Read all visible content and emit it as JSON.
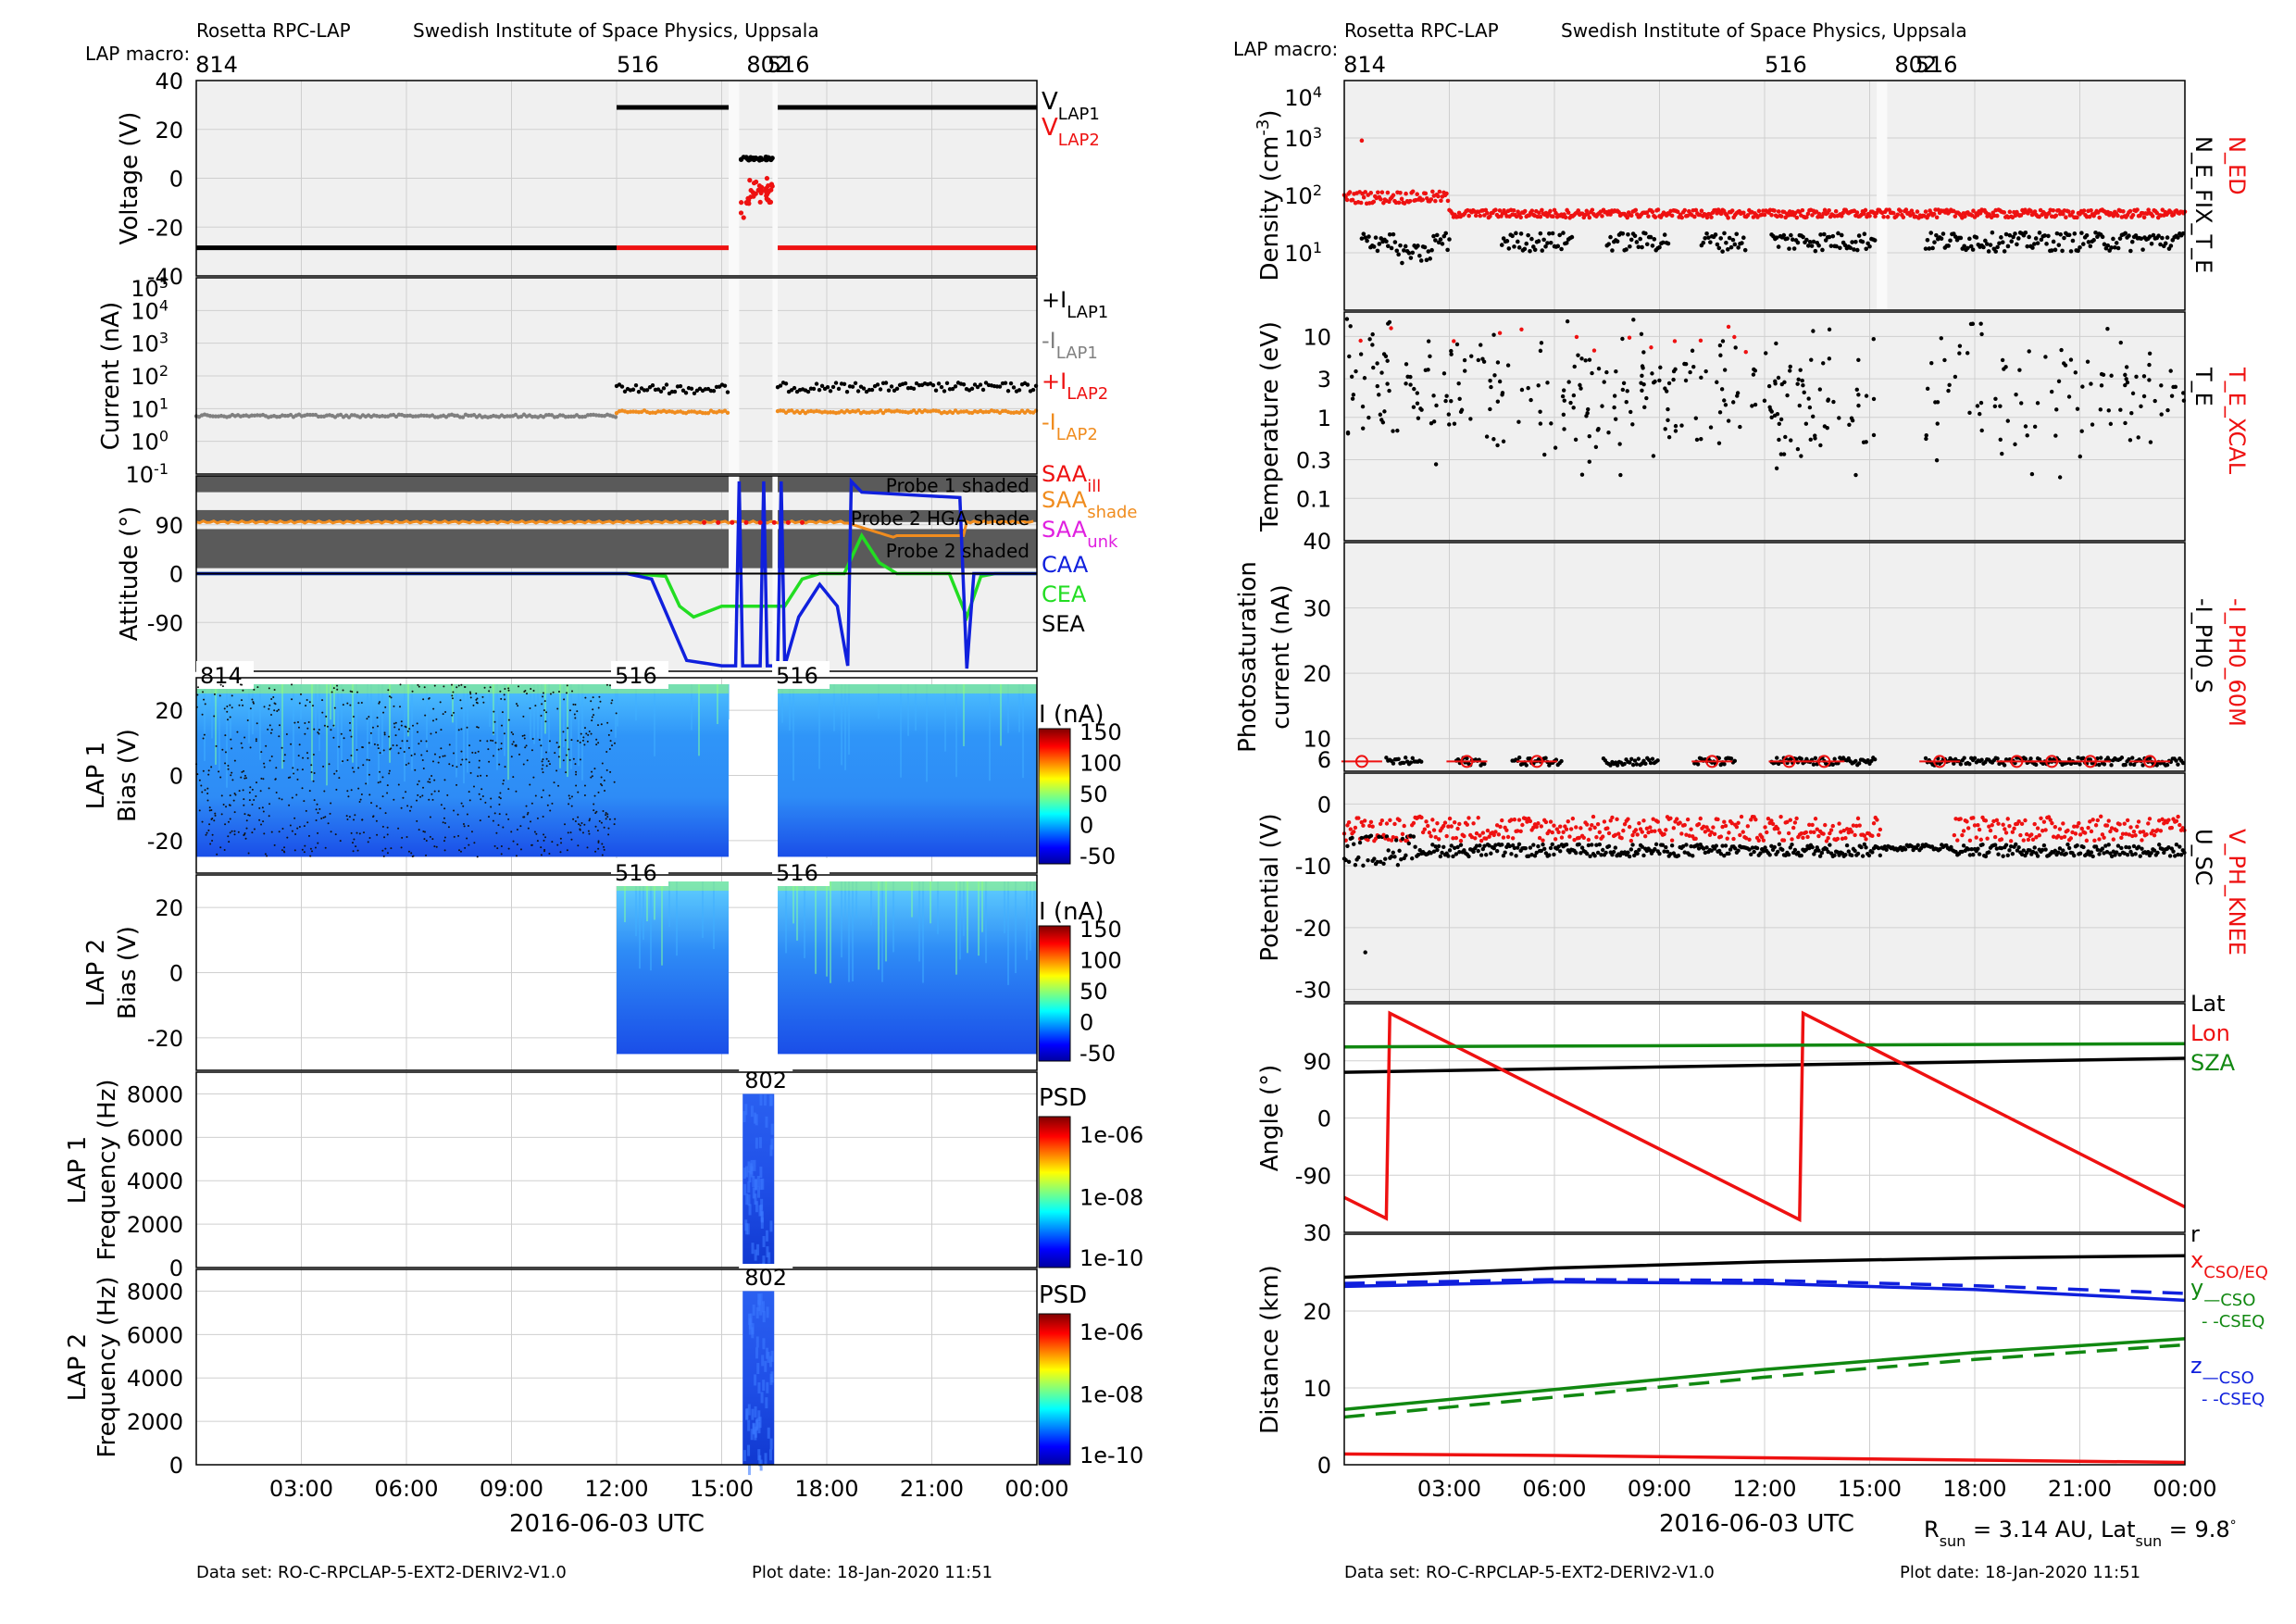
{
  "header": {
    "title_left": "Rosetta RPC-LAP",
    "institute": "Swedish Institute of Space Physics, Uppsala",
    "macro_label": "LAP macro:",
    "macros": [
      {
        "label": "814",
        "hour": 0
      },
      {
        "label": "516",
        "hour": 12
      },
      {
        "label": "802",
        "hour": 15.5
      },
      {
        "label": "516",
        "hour": 16.3
      }
    ]
  },
  "footer": {
    "dataset": "Data set: RO-C-RPCLAP-5-EXT2-DERIV2-V1.0",
    "plot_date": "Plot date: 18-Jan-2020 11:51",
    "xlabel": "2016-06-03 UTC",
    "sun_info": "R_sun = 3.14 AU, Lat_sun = 9.8°"
  },
  "colors": {
    "black": "#000000",
    "red": "#ee1111",
    "grey": "#808080",
    "orange": "#f08c1e",
    "blue": "#1020dd",
    "green": "#22dd22",
    "dkgreen": "#118811",
    "magenta": "#e020e0",
    "panel_bg": "#f0f0f0",
    "shade": "#5a5a5a"
  },
  "chart_data": [
    {
      "id": "voltage",
      "type": "line",
      "ylabel": "Voltage (V)",
      "ylim": [
        -40,
        40
      ],
      "yticks": [
        40,
        20,
        0,
        -20,
        -40
      ],
      "legend": [
        "V_LAP1",
        "V_LAP2"
      ],
      "series": [
        {
          "name": "V_LAP1",
          "color": "black",
          "points": [
            [
              0,
              -28.5
            ],
            [
              12,
              -28.5
            ],
            [
              12,
              29
            ],
            [
              15.2,
              29
            ],
            [
              16.6,
              29
            ],
            [
              24,
              29
            ]
          ],
          "segments": [
            [
              0,
              12,
              -28.5
            ],
            [
              12,
              15.2,
              29
            ],
            [
              16.6,
              24,
              29
            ]
          ]
        },
        {
          "name": "V_LAP2",
          "color": "red",
          "segments": [
            [
              12,
              15.2,
              -28.5
            ],
            [
              16.6,
              24,
              -28.5
            ]
          ]
        }
      ],
      "macro_802": {
        "start": 15.2,
        "end": 16.5,
        "v1": 8,
        "v2": -5
      }
    },
    {
      "id": "current",
      "type": "scatter",
      "ylabel": "Current (nA)",
      "log": true,
      "ylim": [
        0.1,
        100000
      ],
      "yticks": [
        "10^4",
        "10^3",
        "10^2",
        "10^1",
        "10^0",
        "10^-1"
      ],
      "legend": [
        "+I_LAP1",
        "-I_LAP1",
        "+I_LAP2",
        "-I_LAP2"
      ],
      "series": [
        {
          "name": "-I_LAP1",
          "color": "grey",
          "range": [
            0,
            12
          ],
          "level": 6
        },
        {
          "name": "+I_LAP1",
          "color": "black",
          "range": [
            12,
            15.2
          ],
          "level": 40
        },
        {
          "name": "+I_LAP1",
          "color": "black",
          "range": [
            16.6,
            24
          ],
          "level": 45
        },
        {
          "name": "-I_LAP2",
          "color": "orange",
          "range": [
            12,
            15.2
          ],
          "level": 8
        },
        {
          "name": "-I_LAP2",
          "color": "orange",
          "range": [
            16.6,
            24
          ],
          "level": 8
        }
      ]
    },
    {
      "id": "attitude",
      "type": "line",
      "ylabel": "Attitude (°)",
      "ylim": [
        -180,
        180
      ],
      "yticks": [
        90,
        0,
        -90
      ],
      "legend": [
        "SAA_ill",
        "SAA_shade",
        "SAA_unk",
        "CAA",
        "CEA",
        "SEA"
      ],
      "annotations": [
        "Probe 1 shaded",
        "Probe 2 HGA shade",
        "Probe 2 shaded"
      ],
      "saa_level": 95,
      "caa_level": 0
    },
    {
      "id": "lap1_bias",
      "type": "heatmap",
      "ylabel": "LAP 1 Bias (V)",
      "ylim": [
        -30,
        30
      ],
      "yticks": [
        20,
        0,
        -20
      ],
      "cbar_label": "I (nA)",
      "cbar_ticks": [
        "150",
        "100",
        "50",
        "0",
        "-50"
      ],
      "segments": [
        [
          0,
          12,
          "814"
        ],
        [
          12,
          15.2,
          "516"
        ],
        [
          16.6,
          24,
          "516"
        ]
      ]
    },
    {
      "id": "lap2_bias",
      "type": "heatmap",
      "ylabel": "LAP 2 Bias (V)",
      "ylim": [
        -30,
        30
      ],
      "yticks": [
        20,
        0,
        -20
      ],
      "cbar_label": "I (nA)",
      "cbar_ticks": [
        "150",
        "100",
        "50",
        "0",
        "-50"
      ],
      "segments": [
        [
          12,
          15.2,
          "516"
        ],
        [
          16.6,
          24,
          "516"
        ]
      ]
    },
    {
      "id": "lap1_freq",
      "type": "heatmap",
      "ylabel": "LAP 1 Frequency (Hz)",
      "ylim": [
        0,
        9000
      ],
      "yticks": [
        8000,
        6000,
        4000,
        2000,
        0
      ],
      "cbar_label": "PSD",
      "cbar_ticks": [
        "1e-06",
        "1e-08",
        "1e-10"
      ],
      "segments": [
        [
          15.6,
          16.5,
          "802"
        ]
      ]
    },
    {
      "id": "lap2_freq",
      "type": "heatmap",
      "ylabel": "LAP 2 Frequency (Hz)",
      "ylim": [
        0,
        9000
      ],
      "yticks": [
        8000,
        6000,
        4000,
        2000,
        0
      ],
      "cbar_label": "PSD",
      "cbar_ticks": [
        "1e-06",
        "1e-08",
        "1e-10"
      ],
      "segments": [
        [
          15.6,
          16.5,
          "802"
        ]
      ]
    },
    {
      "id": "density",
      "type": "scatter",
      "ylabel": "Density (cm^-3)",
      "log": true,
      "ylim": [
        1,
        10000
      ],
      "yticks": [
        "10^4",
        "10^3",
        "10^2",
        "10^1"
      ],
      "legend": [
        "N_ED",
        "N_E_FIX_T_E"
      ],
      "ned_level": 45,
      "nfix_level": 15
    },
    {
      "id": "temperature",
      "type": "scatter",
      "ylabel": "Temperature (eV)",
      "log": true,
      "ylim": [
        0.03,
        20
      ],
      "yticks": [
        "10",
        "3",
        "1",
        "0.3",
        "0.1"
      ],
      "legend": [
        "T_E_XCAL",
        "T_E"
      ]
    },
    {
      "id": "photo",
      "type": "scatter",
      "ylabel": "Photosaturation current (nA)",
      "ylim": [
        5,
        40
      ],
      "yticks": [
        40,
        30,
        20,
        10
      ],
      "bottom_label": "6",
      "legend": [
        "-I_PH0_60M",
        "-I_PH0_S"
      ],
      "level": 6.5
    },
    {
      "id": "potential",
      "type": "scatter",
      "ylabel": "Potential (V)",
      "ylim": [
        -32,
        5
      ],
      "yticks": [
        0,
        -10,
        -20,
        -30
      ],
      "legend": [
        "V_PH_KNEE",
        "U_SC"
      ],
      "knee_level": -4,
      "usc_level": -7.5
    },
    {
      "id": "angle",
      "type": "line",
      "ylabel": "Angle (°)",
      "ylim": [
        -180,
        180
      ],
      "yticks": [
        90,
        0,
        -90
      ],
      "legend": [
        "Lat",
        "Lon",
        "SZA"
      ],
      "series": [
        {
          "name": "Lat",
          "color": "black",
          "x": [
            0,
            24
          ],
          "y": [
            72,
            94
          ]
        },
        {
          "name": "Lon",
          "color": "red",
          "x": [
            0,
            1.2,
            1.3,
            13.0,
            13.1,
            24
          ],
          "y": [
            -125,
            -158,
            165,
            -160,
            165,
            -140
          ]
        },
        {
          "name": "SZA",
          "color": "dkgreen",
          "x": [
            0,
            24
          ],
          "y": [
            112,
            117
          ]
        }
      ]
    },
    {
      "id": "distance",
      "type": "line",
      "ylabel": "Distance (km)",
      "ylim": [
        0,
        30
      ],
      "yticks": [
        30,
        20,
        10,
        0
      ],
      "legend": [
        "r",
        "x_CSO/EQ",
        "y_—CSO",
        "- -CSEQ",
        "z_—CSO",
        "- -CSEQ"
      ],
      "series": [
        {
          "name": "r",
          "color": "black",
          "x": [
            0,
            6,
            12,
            18,
            24
          ],
          "y": [
            24.4,
            25.6,
            26.4,
            26.9,
            27.2
          ]
        },
        {
          "name": "x",
          "color": "red",
          "x": [
            0,
            6,
            12,
            18,
            24
          ],
          "y": [
            1.4,
            1.2,
            0.9,
            0.6,
            0.3
          ]
        },
        {
          "name": "y_CSO",
          "color": "blue",
          "x": [
            0,
            6,
            12,
            18,
            24
          ],
          "y": [
            23.2,
            23.8,
            23.6,
            22.8,
            21.4
          ]
        },
        {
          "name": "y_CSEQ",
          "color": "blue",
          "dash": true,
          "x": [
            0,
            6,
            12,
            18,
            24
          ],
          "y": [
            23.6,
            24.1,
            24.0,
            23.3,
            22.3
          ]
        },
        {
          "name": "z_CSO",
          "color": "dkgreen",
          "x": [
            0,
            6,
            12,
            18,
            24
          ],
          "y": [
            7.2,
            9.8,
            12.4,
            14.6,
            16.4
          ]
        },
        {
          "name": "z_CSEQ",
          "color": "dkgreen",
          "dash": true,
          "x": [
            0,
            6,
            12,
            18,
            24
          ],
          "y": [
            6.2,
            8.8,
            11.4,
            13.7,
            15.6
          ]
        }
      ]
    }
  ],
  "xticks": [
    "03:00",
    "06:00",
    "09:00",
    "12:00",
    "15:00",
    "18:00",
    "21:00",
    "00:00"
  ]
}
